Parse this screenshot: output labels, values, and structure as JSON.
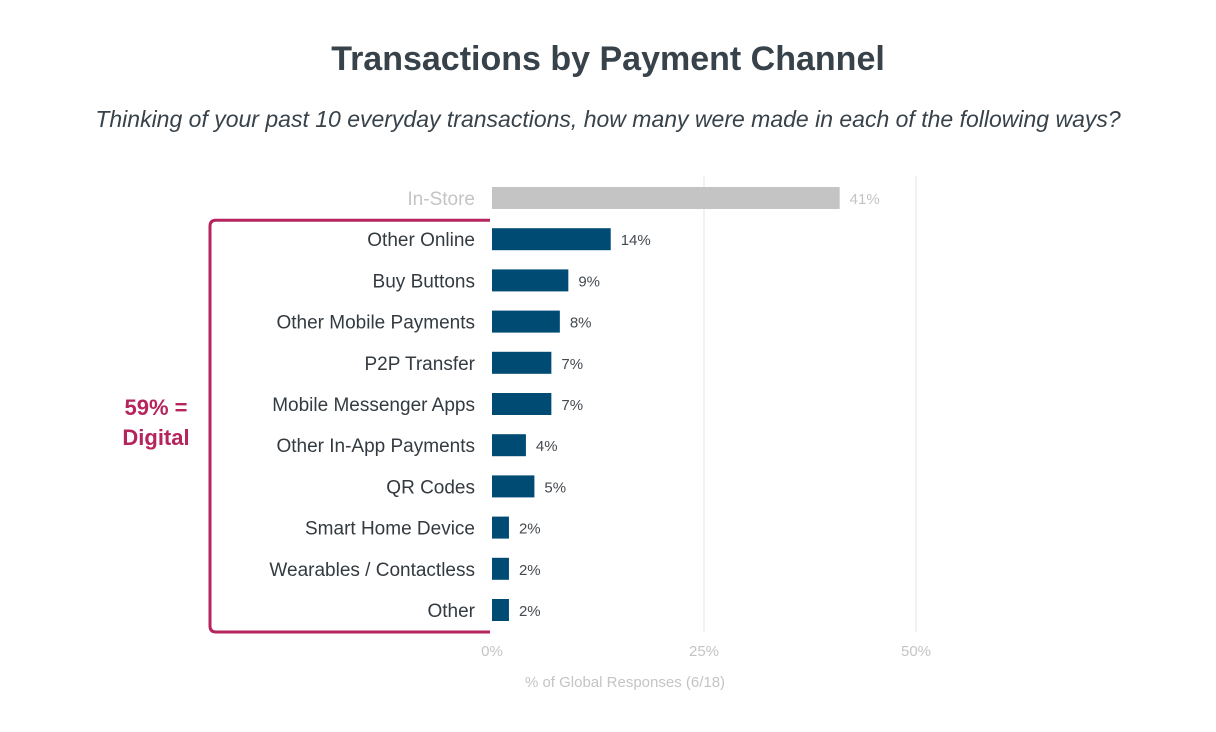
{
  "chart_data": {
    "type": "bar",
    "orientation": "horizontal",
    "title": "Transactions by Payment Channel",
    "subtitle": "Thinking of your past 10 everyday transactions, how many were made in each of the following ways?",
    "categories": [
      "In-Store",
      "Other Online",
      "Buy Buttons",
      "Other Mobile Payments",
      "P2P Transfer",
      "Mobile Messenger Apps",
      "Other In-App Payments",
      "QR Codes",
      "Smart Home Device",
      "Wearables / Contactless",
      "Other"
    ],
    "values": [
      41,
      14,
      9,
      8,
      7,
      7,
      4,
      5,
      2,
      2,
      2
    ],
    "value_labels": [
      "41%",
      "14%",
      "9%",
      "8%",
      "7%",
      "7%",
      "4%",
      "5%",
      "2%",
      "2%",
      "2%"
    ],
    "highlight": [
      false,
      true,
      true,
      true,
      true,
      true,
      true,
      true,
      true,
      true,
      true
    ],
    "xlabel": "% of Global Responses (6/18)",
    "ylabel": "",
    "xlim": [
      0,
      50
    ],
    "xticks": [
      0,
      25,
      50
    ],
    "xtick_labels": [
      "0%",
      "25%",
      "50%"
    ],
    "grid": "vertical",
    "annotation": {
      "line1": "59% =",
      "line2": "Digital",
      "spans_from": "Other Online",
      "spans_to": "Other"
    },
    "colors": {
      "digital_bar": "#004b74",
      "instore_bar": "#c4c4c4",
      "annotation": "#b5245c",
      "gridline": "#e6e6e6"
    }
  }
}
